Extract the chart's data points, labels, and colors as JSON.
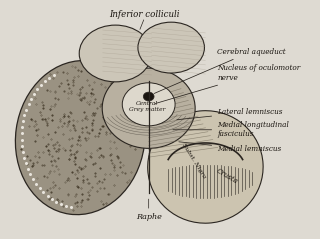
{
  "bg_color": "#dedad2",
  "labels": {
    "inferior_colliculi": "Inferior colliculi",
    "central_grey": "Central\nGrey matter",
    "cerebral_aqueduct": "Cerebral aqueduct",
    "nucleus_oculomotor": "Nucleus of oculomotor\nnerve",
    "lateral_lemniscus": "Lateral lemniscus",
    "medial_long_fasc": "Medial longitudinal\nfasciculus",
    "medial_lemniscus": "Medial lemniscus",
    "subst_nigra": "Subst. Nigra",
    "crusta": "Crusta",
    "raphe": "Raphe"
  },
  "line_color": "#2a2520",
  "text_color": "#1a1510"
}
